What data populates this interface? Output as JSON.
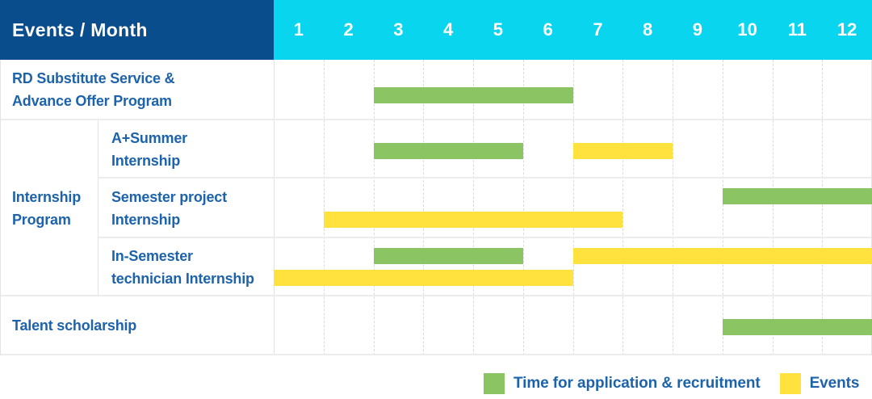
{
  "header": {
    "title": "Events / Month",
    "months": [
      "1",
      "2",
      "3",
      "4",
      "5",
      "6",
      "7",
      "8",
      "9",
      "10",
      "11",
      "12"
    ]
  },
  "group_label_lines": [
    "Internship",
    "Program"
  ],
  "rows": [
    {
      "label_lines": [
        "RD Substitute Service &",
        "Advance Offer Program"
      ],
      "bars": [
        {
          "color": "green",
          "start": 3,
          "end": 6,
          "line": 0
        }
      ]
    },
    {
      "label_lines": [
        "A+Summer",
        "Internship"
      ],
      "bars": [
        {
          "color": "green",
          "start": 3,
          "end": 5,
          "line": 0
        },
        {
          "color": "yellow",
          "start": 7,
          "end": 8,
          "line": 0
        }
      ]
    },
    {
      "label_lines": [
        "Semester project",
        "Internship"
      ],
      "bars": [
        {
          "color": "green",
          "start": 10,
          "end": 12,
          "line": 0
        },
        {
          "color": "yellow",
          "start": 2,
          "end": 7,
          "line": 1
        }
      ]
    },
    {
      "label_lines": [
        "In-Semester",
        "technician Internship"
      ],
      "bars": [
        {
          "color": "green",
          "start": 3,
          "end": 5,
          "line": 0
        },
        {
          "color": "yellow",
          "start": 7,
          "end": 12,
          "line": 0
        },
        {
          "color": "yellow",
          "start": 1,
          "end": 6,
          "line": 1
        }
      ]
    },
    {
      "label_lines": [
        "Talent scholarship"
      ],
      "bars": [
        {
          "color": "green",
          "start": 10,
          "end": 12,
          "line": 0
        }
      ]
    }
  ],
  "legend": [
    {
      "color": "green",
      "label": "Time for application & recruitment"
    },
    {
      "color": "yellow",
      "label": "Events"
    }
  ],
  "colors": {
    "green": "#8bc463",
    "yellow": "#ffe23d",
    "header_bg": "#0a4d8c",
    "months_bg": "#0ad5ee",
    "label_text": "#1d63ac"
  },
  "chart_data": {
    "type": "gantt",
    "title": "Events / Month",
    "x_axis": {
      "label": "Month",
      "ticks": [
        1,
        2,
        3,
        4,
        5,
        6,
        7,
        8,
        9,
        10,
        11,
        12
      ],
      "range": [
        1,
        12
      ]
    },
    "legend_entries": [
      {
        "name": "Time for application & recruitment",
        "color": "#8bc463"
      },
      {
        "name": "Events",
        "color": "#ffe23d"
      }
    ],
    "rows": [
      {
        "name": "RD Substitute Service & Advance Offer Program",
        "group": null,
        "bars": [
          {
            "series": "Time for application & recruitment",
            "start_month": 3,
            "end_month": 6
          }
        ]
      },
      {
        "name": "A+Summer Internship",
        "group": "Internship Program",
        "bars": [
          {
            "series": "Time for application & recruitment",
            "start_month": 3,
            "end_month": 5
          },
          {
            "series": "Events",
            "start_month": 7,
            "end_month": 8
          }
        ]
      },
      {
        "name": "Semester project Internship",
        "group": "Internship Program",
        "bars": [
          {
            "series": "Time for application & recruitment",
            "start_month": 10,
            "end_month": 12
          },
          {
            "series": "Events",
            "start_month": 2,
            "end_month": 7
          }
        ]
      },
      {
        "name": "In-Semester technician Internship",
        "group": "Internship Program",
        "bars": [
          {
            "series": "Time for application & recruitment",
            "start_month": 3,
            "end_month": 5
          },
          {
            "series": "Events",
            "start_month": 7,
            "end_month": 12
          },
          {
            "series": "Events",
            "start_month": 1,
            "end_month": 6
          }
        ]
      },
      {
        "name": "Talent scholarship",
        "group": null,
        "bars": [
          {
            "series": "Time for application & recruitment",
            "start_month": 10,
            "end_month": 12
          }
        ]
      }
    ]
  }
}
